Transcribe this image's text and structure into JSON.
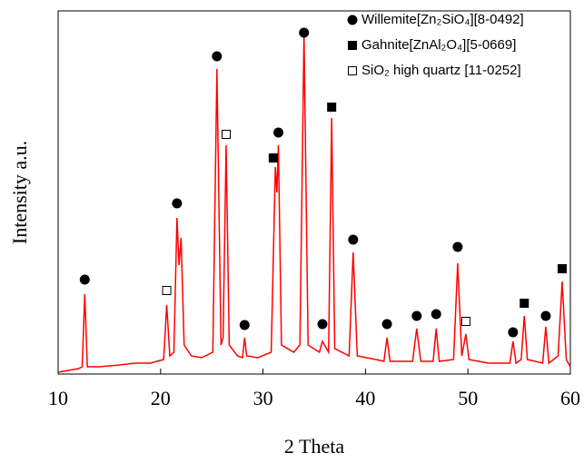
{
  "chart_data": {
    "type": "line",
    "xlabel": "2 Theta",
    "ylabel": "Intensity  a.u.",
    "color": "#ff0000",
    "x": [
      10,
      11,
      12,
      12.35,
      12.6,
      12.85,
      14,
      16,
      17.5,
      19,
      20.3,
      20.6,
      20.9,
      21.3,
      21.6,
      21.8,
      22.0,
      22.3,
      23,
      24,
      25.1,
      25.5,
      25.9,
      26.1,
      26.4,
      26.7,
      27.5,
      28.0,
      28.2,
      28.4,
      29.5,
      30.8,
      31.2,
      31.35,
      31.5,
      31.8,
      33,
      33.6,
      34.0,
      34.4,
      35.5,
      35.8,
      36.2,
      36.4,
      36.7,
      37.0,
      38.4,
      38.8,
      39.2,
      41,
      41.8,
      42.1,
      42.4,
      44.6,
      45.0,
      45.4,
      46.6,
      46.9,
      47.2,
      48.6,
      49.0,
      49.4,
      49.8,
      50.1,
      52,
      54.1,
      54.4,
      54.7,
      55.2,
      55.5,
      55.8,
      57.3,
      57.6,
      57.9,
      58.8,
      59.2,
      59.6,
      60
    ],
    "values": [
      0.5,
      1,
      1.5,
      2,
      22,
      2,
      2,
      2.5,
      3,
      3,
      4,
      19,
      5,
      6,
      43,
      30,
      37.5,
      8,
      5,
      4.5,
      6,
      84,
      8,
      10,
      63,
      8,
      5,
      4.5,
      10,
      5,
      4.5,
      6,
      57,
      50,
      63,
      8,
      6,
      8,
      93.5,
      8,
      6,
      9,
      7,
      6,
      70.5,
      7,
      5,
      33.5,
      5,
      4,
      3.5,
      10,
      3.5,
      3.5,
      12.5,
      3.5,
      3.5,
      12.5,
      3.5,
      4,
      30.5,
      5,
      11,
      4,
      3,
      3,
      9,
      3,
      4,
      16,
      4,
      3,
      13,
      3,
      5,
      25.5,
      4,
      2
    ],
    "markers": [
      {
        "name": "Willemite[Zn₂SiO₄][8-0492]",
        "shape": "circle",
        "x": [
          12.6,
          21.6,
          25.5,
          28.2,
          31.5,
          34.0,
          35.8,
          38.8,
          42.1,
          45.0,
          46.9,
          49.0,
          54.4,
          57.6
        ],
        "values": [
          26,
          47,
          87.5,
          13.5,
          66.5,
          94,
          13.75,
          37,
          13.75,
          16,
          16.5,
          35,
          11.5,
          16
        ]
      },
      {
        "name": "Gahnite[ZnAl₂O₄][5-0669]",
        "shape": "square",
        "x": [
          31.0,
          36.7,
          55.5,
          59.2
        ],
        "values": [
          59.5,
          73.5,
          19.5,
          29
        ]
      },
      {
        "name": "SiO₂ high quartz [11-0252]",
        "shape": "open-square",
        "x": [
          20.6,
          26.4,
          49.8
        ],
        "values": [
          23,
          66,
          14.5
        ]
      }
    ],
    "xlim": [
      10,
      61
    ],
    "ylim": [
      0,
      100
    ],
    "xticks": [
      10,
      20,
      30,
      40,
      50,
      60
    ],
    "legend": "upper right"
  }
}
